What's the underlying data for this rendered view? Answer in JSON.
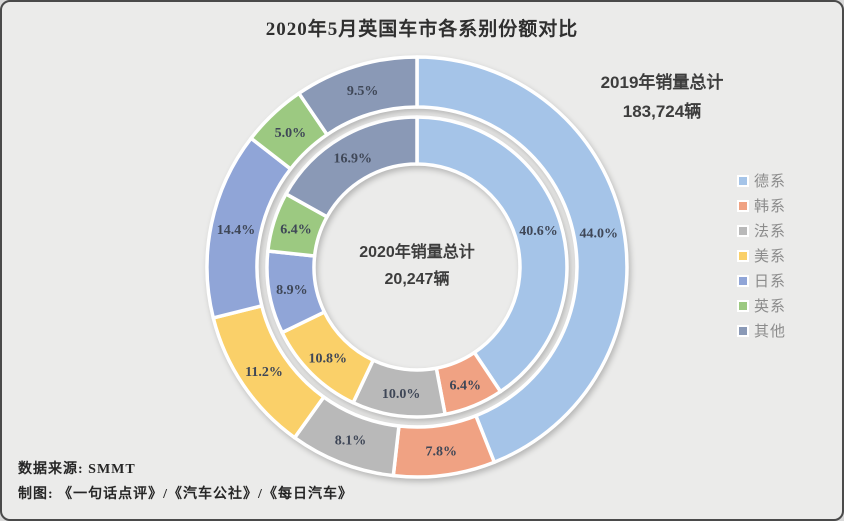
{
  "title": "2020年5月英国车市各系别份额对比",
  "chart_data": {
    "type": "donut-double",
    "title": "2020年5月英国车市各系别份额对比",
    "categories": [
      "德系",
      "韩系",
      "法系",
      "美系",
      "日系",
      "英系",
      "其他"
    ],
    "colors": [
      "#A5C4E8",
      "#F0A283",
      "#B9B9B9",
      "#FAD069",
      "#90A5D7",
      "#9CC981",
      "#8A99B6"
    ],
    "series": [
      {
        "name": "2020年销量份额(内环)",
        "ring": "inner",
        "values": [
          40.6,
          6.4,
          10.0,
          10.8,
          8.9,
          6.4,
          16.9
        ]
      },
      {
        "name": "2019年销量份额(外环)",
        "ring": "outer",
        "values": [
          44.0,
          7.8,
          8.1,
          11.2,
          14.4,
          5.0,
          9.5
        ]
      }
    ],
    "start_angle_deg": 0,
    "direction": "clockwise",
    "legend_position": "right",
    "center_label": {
      "line1": "2020年销量总计",
      "line2": "20,247辆"
    },
    "outer_label": {
      "line1": "2019年销量总计",
      "line2": "183,724辆"
    }
  },
  "footer": {
    "source_line": "数据来源: SMMT",
    "credit_line": "制图: 《一句话点评》/《汽车公社》/《每日汽车》"
  }
}
